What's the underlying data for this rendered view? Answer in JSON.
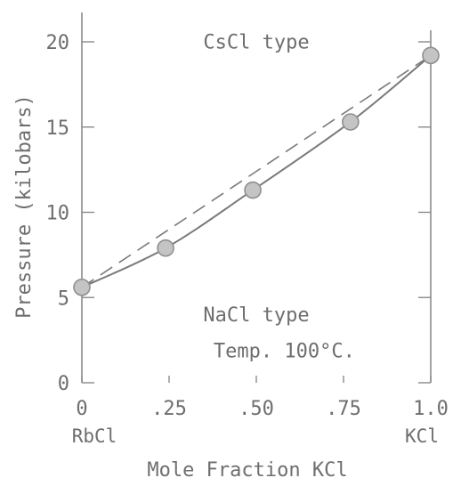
{
  "chart_data": {
    "type": "line",
    "xlabel": "Mole Fraction KCl",
    "ylabel": "Pressure (kilobars)",
    "xlim": [
      0,
      1.0
    ],
    "ylim": [
      0,
      20
    ],
    "x_ticks": [
      {
        "value": 0,
        "label": "0"
      },
      {
        "value": 0.25,
        "label": ".25"
      },
      {
        "value": 0.5,
        "label": ".50"
      },
      {
        "value": 0.75,
        "label": ".75"
      },
      {
        "value": 1.0,
        "label": "1.0"
      }
    ],
    "y_ticks": [
      {
        "value": 0,
        "label": "0"
      },
      {
        "value": 5,
        "label": "5"
      },
      {
        "value": 10,
        "label": "10"
      },
      {
        "value": 15,
        "label": "15"
      },
      {
        "value": 20,
        "label": "20"
      }
    ],
    "x_end_labels": {
      "left": "RbCl",
      "right": "KCl"
    },
    "series": [
      {
        "style": "solid-with-markers",
        "x": [
          0,
          0.24,
          0.49,
          0.77,
          1.0
        ],
        "y": [
          5.6,
          7.9,
          11.3,
          15.3,
          19.2
        ]
      },
      {
        "style": "dashed",
        "x": [
          0,
          1.0
        ],
        "y": [
          5.6,
          19.2
        ]
      }
    ],
    "annotations": [
      {
        "text": "CsCl type",
        "x": 0.5,
        "y": 19.6
      },
      {
        "text": "NaCl type",
        "x": 0.5,
        "y": 3.6
      },
      {
        "text": "Temp. 100°C.",
        "x": 0.58,
        "y": 1.5
      }
    ],
    "grid": false,
    "legend": "none"
  }
}
